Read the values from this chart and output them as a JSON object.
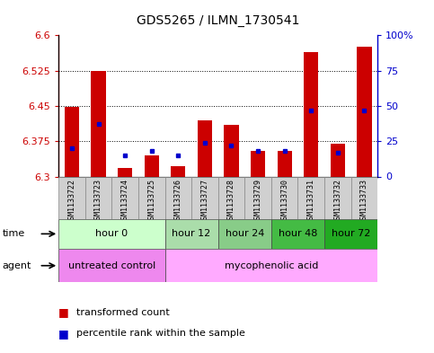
{
  "title": "GDS5265 / ILMN_1730541",
  "samples": [
    "GSM1133722",
    "GSM1133723",
    "GSM1133724",
    "GSM1133725",
    "GSM1133726",
    "GSM1133727",
    "GSM1133728",
    "GSM1133729",
    "GSM1133730",
    "GSM1133731",
    "GSM1133732",
    "GSM1133733"
  ],
  "transformed_counts": [
    6.447,
    6.525,
    6.318,
    6.345,
    6.322,
    6.42,
    6.41,
    6.355,
    6.355,
    6.565,
    6.37,
    6.575
  ],
  "percentile_ranks": [
    20,
    37,
    15,
    18,
    15,
    24,
    22,
    18,
    18,
    47,
    17,
    47
  ],
  "ylim_left": [
    6.3,
    6.6
  ],
  "ylim_right": [
    0,
    100
  ],
  "yticks_left": [
    6.3,
    6.375,
    6.45,
    6.525,
    6.6
  ],
  "yticks_right": [
    0,
    25,
    50,
    75,
    100
  ],
  "ytick_labels_right": [
    "0",
    "25",
    "50",
    "75",
    "100%"
  ],
  "bar_bottom": 6.3,
  "bar_color": "#cc0000",
  "blue_color": "#0000cc",
  "time_groups": [
    {
      "label": "hour 0",
      "indices": [
        0,
        1,
        2,
        3
      ],
      "color": "#ccffcc"
    },
    {
      "label": "hour 12",
      "indices": [
        4,
        5
      ],
      "color": "#aaddaa"
    },
    {
      "label": "hour 24",
      "indices": [
        6,
        7
      ],
      "color": "#88cc88"
    },
    {
      "label": "hour 48",
      "indices": [
        8,
        9
      ],
      "color": "#44bb44"
    },
    {
      "label": "hour 72",
      "indices": [
        10,
        11
      ],
      "color": "#22aa22"
    }
  ],
  "agent_groups": [
    {
      "label": "untreated control",
      "indices": [
        0,
        1,
        2,
        3
      ],
      "color": "#ee88ee"
    },
    {
      "label": "mycophenolic acid",
      "indices": [
        4,
        5,
        6,
        7,
        8,
        9,
        10,
        11
      ],
      "color": "#ffaaff"
    }
  ],
  "sample_label_bg": "#d0d0d0",
  "plot_bg": "#ffffff",
  "bar_width": 0.55,
  "legend_entries": [
    "transformed count",
    "percentile rank within the sample"
  ],
  "time_label_color": "#000000",
  "agent_label_color": "#000000"
}
